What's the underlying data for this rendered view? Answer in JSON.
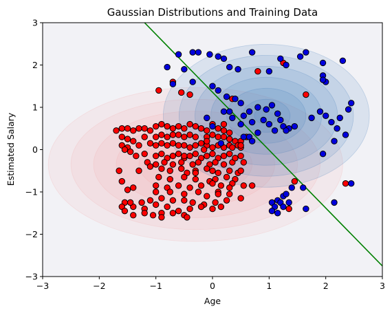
{
  "chart_data": {
    "type": "scatter",
    "title": "Gaussian Distributions and Training Data",
    "xlabel": "Age",
    "ylabel": "Estimated Salary",
    "xlim": [
      -3,
      3
    ],
    "ylim": [
      -3,
      3
    ],
    "xticks": [
      "−3",
      "−2",
      "−1",
      "0",
      "1",
      "2",
      "3"
    ],
    "yticks": [
      "−3",
      "−2",
      "−1",
      "0",
      "1",
      "2",
      "3"
    ],
    "grid": false,
    "legend": "none",
    "colors": {
      "class_0": "#ff0000",
      "class_1": "#0000dd",
      "boundary": "#008000",
      "contour_red": "#f4a6a6",
      "contour_blue": "#3a78b8",
      "plot_bg": "#f2f2f6"
    },
    "gaussians": [
      {
        "class": "red",
        "mean": [
          -0.3,
          -0.35
        ],
        "sd": [
          1.0,
          0.7
        ]
      },
      {
        "class": "blue",
        "mean": [
          0.95,
          0.8
        ],
        "sd": [
          0.7,
          0.65
        ]
      }
    ],
    "boundary_line": {
      "x": [
        -1.2,
        3.0
      ],
      "y": [
        3.0,
        -2.75
      ]
    },
    "series": [
      {
        "class": "red",
        "points": [
          [
            -1.7,
            0.45
          ],
          [
            -1.6,
            0.5
          ],
          [
            -1.5,
            0.5
          ],
          [
            -1.4,
            0.45
          ],
          [
            -1.3,
            0.5
          ],
          [
            -1.2,
            0.5
          ],
          [
            -1.1,
            0.45
          ],
          [
            -1.0,
            0.55
          ],
          [
            -0.9,
            0.6
          ],
          [
            -0.8,
            0.55
          ],
          [
            -0.7,
            0.5
          ],
          [
            -0.6,
            0.55
          ],
          [
            -0.5,
            0.5
          ],
          [
            -0.4,
            0.6
          ],
          [
            -0.3,
            0.55
          ],
          [
            -0.2,
            0.5
          ],
          [
            -0.1,
            0.45
          ],
          [
            0.0,
            0.6
          ],
          [
            0.1,
            0.5
          ],
          [
            0.2,
            0.45
          ],
          [
            -1.6,
            0.3
          ],
          [
            -1.5,
            0.25
          ],
          [
            -1.4,
            0.2
          ],
          [
            -1.2,
            0.3
          ],
          [
            -1.0,
            0.3
          ],
          [
            -0.9,
            0.35
          ],
          [
            -0.8,
            0.3
          ],
          [
            -0.6,
            0.35
          ],
          [
            -0.5,
            0.3
          ],
          [
            -0.4,
            0.35
          ],
          [
            -0.3,
            0.3
          ],
          [
            -0.1,
            0.3
          ],
          [
            0.0,
            0.35
          ],
          [
            0.1,
            0.3
          ],
          [
            0.2,
            0.3
          ],
          [
            0.3,
            0.25
          ],
          [
            0.4,
            0.2
          ],
          [
            0.5,
            0.2
          ],
          [
            0.3,
            0.4
          ],
          [
            0.45,
            0.1
          ],
          [
            -1.6,
            0.1
          ],
          [
            -1.5,
            0.05
          ],
          [
            -1.3,
            0.1
          ],
          [
            -1.1,
            0.15
          ],
          [
            -1.0,
            0.1
          ],
          [
            -0.9,
            0.15
          ],
          [
            -0.8,
            0.1
          ],
          [
            -0.7,
            0.15
          ],
          [
            -0.6,
            0.1
          ],
          [
            -0.5,
            0.1
          ],
          [
            -0.4,
            0.05
          ],
          [
            -0.3,
            0.1
          ],
          [
            -0.2,
            0.15
          ],
          [
            -0.1,
            0.1
          ],
          [
            0.0,
            0.05
          ],
          [
            0.1,
            0.1
          ],
          [
            0.2,
            0.05
          ],
          [
            0.3,
            0.1
          ],
          [
            0.5,
            0.05
          ],
          [
            -1.45,
            -0.05
          ],
          [
            -1.35,
            -0.15
          ],
          [
            -1.2,
            -0.1
          ],
          [
            -1.0,
            -0.15
          ],
          [
            -0.9,
            -0.1
          ],
          [
            -0.8,
            -0.2
          ],
          [
            -0.7,
            -0.15
          ],
          [
            -0.6,
            -0.1
          ],
          [
            -0.5,
            -0.2
          ],
          [
            -0.4,
            -0.15
          ],
          [
            -0.3,
            -0.1
          ],
          [
            -0.2,
            -0.2
          ],
          [
            -0.1,
            -0.15
          ],
          [
            0.0,
            -0.1
          ],
          [
            0.1,
            -0.2
          ],
          [
            0.2,
            -0.15
          ],
          [
            0.3,
            -0.1
          ],
          [
            0.4,
            -0.2
          ],
          [
            0.5,
            -0.15
          ],
          [
            -1.15,
            -0.3
          ],
          [
            -1.0,
            -0.35
          ],
          [
            -0.85,
            -0.3
          ],
          [
            -0.7,
            -0.35
          ],
          [
            -0.55,
            -0.3
          ],
          [
            -0.35,
            -0.35
          ],
          [
            -0.25,
            -0.3
          ],
          [
            -0.05,
            -0.35
          ],
          [
            0.05,
            -0.3
          ],
          [
            0.2,
            -0.35
          ],
          [
            0.35,
            -0.3
          ],
          [
            0.55,
            -0.3
          ],
          [
            -1.65,
            -0.5
          ],
          [
            -1.3,
            -0.5
          ],
          [
            -1.1,
            -0.4
          ],
          [
            -0.9,
            -0.45
          ],
          [
            -0.75,
            -0.5
          ],
          [
            -0.55,
            -0.45
          ],
          [
            -0.45,
            -0.55
          ],
          [
            -0.3,
            -0.5
          ],
          [
            -0.1,
            -0.45
          ],
          [
            0.0,
            -0.5
          ],
          [
            0.1,
            -0.55
          ],
          [
            0.3,
            -0.5
          ],
          [
            0.45,
            -0.55
          ],
          [
            -0.95,
            -0.65
          ],
          [
            -0.75,
            -0.7
          ],
          [
            -0.5,
            -0.65
          ],
          [
            -0.3,
            -0.7
          ],
          [
            -0.05,
            -0.75
          ],
          [
            0.05,
            -0.7
          ],
          [
            0.25,
            -0.65
          ],
          [
            0.4,
            -0.7
          ],
          [
            -1.6,
            -0.75
          ],
          [
            -1.4,
            -0.9
          ],
          [
            -1.0,
            -0.85
          ],
          [
            -0.8,
            -0.9
          ],
          [
            -0.6,
            -0.85
          ],
          [
            -0.4,
            -0.9
          ],
          [
            -0.2,
            -0.85
          ],
          [
            0.0,
            -0.8
          ],
          [
            0.15,
            -0.85
          ],
          [
            0.35,
            -0.8
          ],
          [
            0.55,
            -0.85
          ],
          [
            -1.5,
            -0.95
          ],
          [
            -1.0,
            -1.0
          ],
          [
            -0.75,
            -1.0
          ],
          [
            -0.5,
            -1.05
          ],
          [
            -0.25,
            -1.0
          ],
          [
            -0.1,
            -1.1
          ],
          [
            0.1,
            -1.0
          ],
          [
            0.3,
            -1.05
          ],
          [
            -1.55,
            -1.25
          ],
          [
            -1.25,
            -1.25
          ],
          [
            -1.1,
            -1.2
          ],
          [
            -0.9,
            -1.15
          ],
          [
            -0.7,
            -1.2
          ],
          [
            -0.5,
            -1.2
          ],
          [
            -0.35,
            -1.25
          ],
          [
            -0.15,
            -1.3
          ],
          [
            0.05,
            -1.25
          ],
          [
            0.25,
            -1.2
          ],
          [
            0.5,
            -1.15
          ],
          [
            -1.6,
            -1.35
          ],
          [
            -1.4,
            -1.35
          ],
          [
            -1.2,
            -1.4
          ],
          [
            -1.0,
            -1.3
          ],
          [
            -0.8,
            -1.35
          ],
          [
            -0.6,
            -1.45
          ],
          [
            -0.4,
            -1.4
          ],
          [
            -0.2,
            -1.35
          ],
          [
            0.0,
            -1.4
          ],
          [
            0.15,
            -1.35
          ],
          [
            -1.55,
            -1.45
          ],
          [
            -1.2,
            -1.5
          ],
          [
            -0.9,
            -1.5
          ],
          [
            -0.7,
            -1.5
          ],
          [
            -0.5,
            -1.55
          ],
          [
            -0.45,
            -1.6
          ],
          [
            -1.05,
            -1.55
          ],
          [
            -1.4,
            -1.55
          ],
          [
            -0.9,
            -1.6
          ],
          [
            -0.5,
            -0.15
          ],
          [
            -0.1,
            0.2
          ],
          [
            0.35,
            0.05
          ],
          [
            -0.7,
            0.35
          ],
          [
            -0.3,
            -0.55
          ],
          [
            -1.55,
            0.0
          ],
          [
            -1.45,
            -1.25
          ],
          [
            -0.15,
            0.0
          ],
          [
            -0.95,
            1.4
          ],
          [
            -0.7,
            1.6
          ],
          [
            -0.55,
            1.35
          ],
          [
            -0.4,
            1.3
          ],
          [
            0.35,
            1.2
          ],
          [
            0.8,
            1.85
          ],
          [
            1.25,
            2.05
          ],
          [
            1.65,
            1.3
          ],
          [
            1.35,
            -1.4
          ],
          [
            1.45,
            -0.75
          ],
          [
            2.35,
            -0.8
          ],
          [
            0.7,
            -0.85
          ],
          [
            0.1,
            -1.05
          ],
          [
            0.5,
            -0.5
          ],
          [
            0.4,
            -0.2
          ],
          [
            0.2,
            0.6
          ],
          [
            0.5,
            0.1
          ],
          [
            -0.3,
            -0.55
          ],
          [
            0.6,
            0.3
          ],
          [
            0.3,
            -0.9
          ]
        ]
      },
      {
        "class": "blue",
        "points": [
          [
            -0.6,
            2.25
          ],
          [
            -0.35,
            2.3
          ],
          [
            -0.25,
            2.3
          ],
          [
            -0.05,
            2.25
          ],
          [
            0.1,
            2.2
          ],
          [
            0.2,
            2.15
          ],
          [
            0.3,
            1.95
          ],
          [
            0.45,
            1.9
          ],
          [
            0.7,
            2.3
          ],
          [
            1.0,
            1.85
          ],
          [
            1.2,
            2.15
          ],
          [
            1.3,
            2.0
          ],
          [
            1.55,
            2.2
          ],
          [
            1.65,
            2.3
          ],
          [
            1.95,
            2.05
          ],
          [
            2.0,
            1.6
          ],
          [
            1.95,
            1.75
          ],
          [
            2.3,
            2.1
          ],
          [
            1.95,
            1.65
          ],
          [
            -0.8,
            1.95
          ],
          [
            -0.5,
            1.9
          ],
          [
            -0.7,
            1.55
          ],
          [
            -0.35,
            1.6
          ],
          [
            0.0,
            1.5
          ],
          [
            0.1,
            1.4
          ],
          [
            0.25,
            1.25
          ],
          [
            0.4,
            1.2
          ],
          [
            0.5,
            1.1
          ],
          [
            0.2,
            0.9
          ],
          [
            0.35,
            0.75
          ],
          [
            0.5,
            0.6
          ],
          [
            0.55,
            0.8
          ],
          [
            0.65,
            0.9
          ],
          [
            0.8,
            1.0
          ],
          [
            0.95,
            0.95
          ],
          [
            1.05,
            1.05
          ],
          [
            1.15,
            0.85
          ],
          [
            1.2,
            0.7
          ],
          [
            1.0,
            0.6
          ],
          [
            0.9,
            0.7
          ],
          [
            0.7,
            0.65
          ],
          [
            1.25,
            0.55
          ],
          [
            1.35,
            0.5
          ],
          [
            1.45,
            0.55
          ],
          [
            1.3,
            0.45
          ],
          [
            1.1,
            0.45
          ],
          [
            0.8,
            0.4
          ],
          [
            0.65,
            0.3
          ],
          [
            1.75,
            0.75
          ],
          [
            1.9,
            0.9
          ],
          [
            2.0,
            0.8
          ],
          [
            2.1,
            0.65
          ],
          [
            2.25,
            0.75
          ],
          [
            2.4,
            0.95
          ],
          [
            2.45,
            1.1
          ],
          [
            2.2,
            0.5
          ],
          [
            2.35,
            0.35
          ],
          [
            2.15,
            0.2
          ],
          [
            1.95,
            -0.1
          ],
          [
            1.05,
            -1.25
          ],
          [
            1.1,
            -1.35
          ],
          [
            1.15,
            -1.2
          ],
          [
            1.2,
            -1.25
          ],
          [
            1.25,
            -1.1
          ],
          [
            1.3,
            -1.05
          ],
          [
            1.35,
            -1.25
          ],
          [
            1.05,
            -1.45
          ],
          [
            1.4,
            -0.9
          ],
          [
            1.6,
            -0.9
          ],
          [
            1.65,
            -1.4
          ],
          [
            2.15,
            -1.25
          ],
          [
            2.45,
            -0.8
          ],
          [
            1.15,
            -1.5
          ],
          [
            1.25,
            -1.35
          ],
          [
            0.3,
            0.9
          ],
          [
            0.55,
            0.3
          ],
          [
            0.7,
            0.2
          ],
          [
            -0.1,
            0.75
          ],
          [
            0.15,
            0.15
          ],
          [
            0.0,
            0.55
          ]
        ]
      }
    ]
  }
}
